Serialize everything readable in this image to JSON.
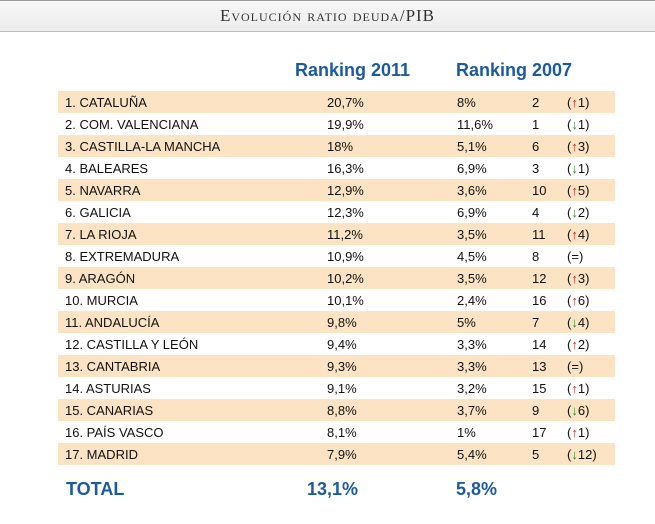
{
  "title": "Evolución ratio deuda/PIB",
  "header": {
    "col_2011": "Ranking 2011",
    "col_2007": "Ranking 2007"
  },
  "rows": [
    {
      "name": "1. CATALUÑA",
      "v2011": "20,7%",
      "v2007": "8%",
      "rank2007": "2",
      "direction": "up",
      "change": "1"
    },
    {
      "name": "2. COM. VALENCIANA",
      "v2011": "19,9%",
      "v2007": "11,6%",
      "rank2007": "1",
      "direction": "down",
      "change": "1"
    },
    {
      "name": "3. CASTILLA-LA MANCHA",
      "v2011": "18%",
      "v2007": "5,1%",
      "rank2007": "6",
      "direction": "up",
      "change": "3"
    },
    {
      "name": "4. BALEARES",
      "v2011": "16,3%",
      "v2007": "6,9%",
      "rank2007": "3",
      "direction": "down",
      "change": "1"
    },
    {
      "name": "5. NAVARRA",
      "v2011": "12,9%",
      "v2007": "3,6%",
      "rank2007": "10",
      "direction": "up",
      "change": "5"
    },
    {
      "name": "6. GALICIA",
      "v2011": "12,3%",
      "v2007": "6,9%",
      "rank2007": "4",
      "direction": "down",
      "change": "2"
    },
    {
      "name": "7. LA RIOJA",
      "v2011": "11,2%",
      "v2007": "3,5%",
      "rank2007": "11",
      "direction": "up",
      "change": "4"
    },
    {
      "name": "8. EXTREMADURA",
      "v2011": "10,9%",
      "v2007": "4,5%",
      "rank2007": "8",
      "direction": "same",
      "change": "="
    },
    {
      "name": "9. ARAGÓN",
      "v2011": "10,2%",
      "v2007": "3,5%",
      "rank2007": "12",
      "direction": "up",
      "change": "3"
    },
    {
      "name": "10. MURCIA",
      "v2011": "10,1%",
      "v2007": "2,4%",
      "rank2007": "16",
      "direction": "up",
      "change": "6"
    },
    {
      "name": "11. ANDALUCÍA",
      "v2011": "9,8%",
      "v2007": "5%",
      "rank2007": "7",
      "direction": "down",
      "change": "4"
    },
    {
      "name": "12. CASTILLA Y LEÓN",
      "v2011": "9,4%",
      "v2007": "3,3%",
      "rank2007": "14",
      "direction": "up",
      "change": "2"
    },
    {
      "name": "13. CANTABRIA",
      "v2011": "9,3%",
      "v2007": "3,3%",
      "rank2007": "13",
      "direction": "same",
      "change": "="
    },
    {
      "name": "14. ASTURIAS",
      "v2011": "9,1%",
      "v2007": "3,2%",
      "rank2007": "15",
      "direction": "up",
      "change": "1"
    },
    {
      "name": "15. CANARIAS",
      "v2011": "8,8%",
      "v2007": "3,7%",
      "rank2007": "9",
      "direction": "down",
      "change": "6"
    },
    {
      "name": "16. PAÍS VASCO",
      "v2011": "8,1%",
      "v2007": "1%",
      "rank2007": "17",
      "direction": "up",
      "change": "1"
    },
    {
      "name": "17. MADRID",
      "v2011": "7,9%",
      "v2007": "5,4%",
      "rank2007": "5",
      "direction": "down",
      "change": "12"
    }
  ],
  "total": {
    "label": "TOTAL",
    "v2011": "13,1%",
    "v2007": "5,8%"
  },
  "colors": {
    "accent": "#1c5aa0",
    "row_shade": "#fbe3c3",
    "up": "#d1271a",
    "down": "#2f8a2f"
  }
}
